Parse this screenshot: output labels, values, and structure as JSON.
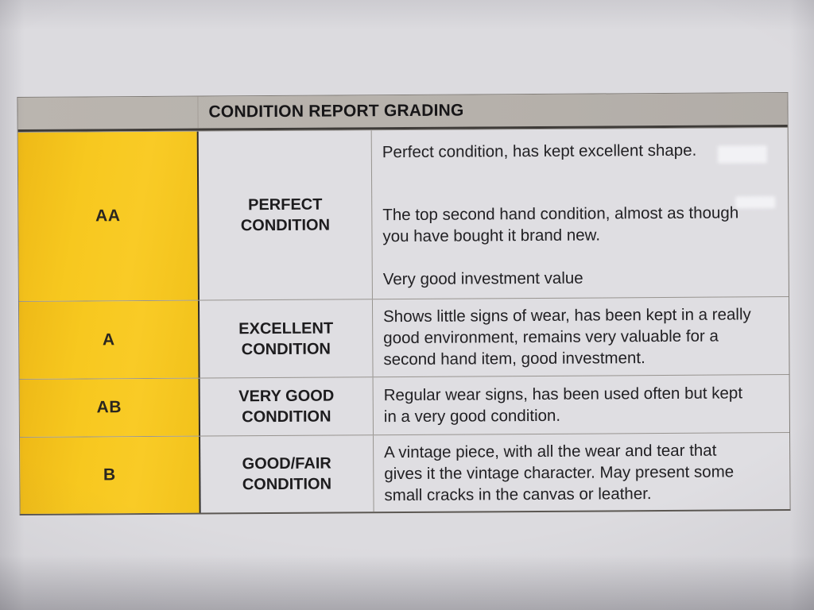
{
  "table": {
    "header": "CONDITION REPORT GRADING",
    "rows": [
      {
        "grade": "AA",
        "label": "PERFECT CONDITION",
        "paragraphs": [
          "Perfect condition, has kept excellent shape.",
          "The top second hand condition, almost as though you have bought it brand new.",
          "Very good investment value"
        ]
      },
      {
        "grade": "A",
        "label": "EXCELLENT CONDITION",
        "paragraphs": [
          "Shows little signs of wear, has been kept in a really good environment, remains very valuable for a second hand item, good investment."
        ]
      },
      {
        "grade": "AB",
        "label": "VERY GOOD CONDITION",
        "paragraphs": [
          "Regular wear signs, has been used often but kept in a very good condition."
        ]
      },
      {
        "grade": "B",
        "label": "GOOD/FAIR CONDITION",
        "paragraphs": [
          "A vintage piece, with all the wear and tear that gives it the vintage character. May present some small cracks in the canvas or leather."
        ]
      }
    ],
    "colors": {
      "grade_column": "#f5c51d",
      "header_band": "#b7b2ad",
      "paper": "#dcdbdf",
      "text": "#201f21"
    }
  }
}
